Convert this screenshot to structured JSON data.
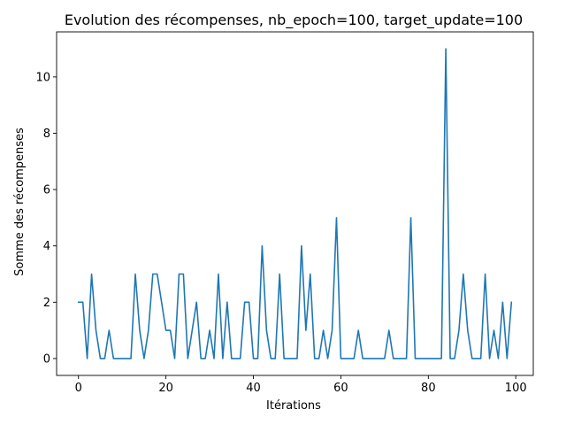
{
  "chart_data": {
    "type": "line",
    "title": "Evolution des récompenses, nb_epoch=100, target_update=100",
    "xlabel": "Itérations",
    "ylabel": "Somme des récompenses",
    "xlim": [
      -5,
      104
    ],
    "ylim": [
      -0.6,
      11.6
    ],
    "xticks": [
      0,
      20,
      40,
      60,
      80,
      100
    ],
    "yticks": [
      0,
      2,
      4,
      6,
      8,
      10
    ],
    "grid": false,
    "line_color": "#1f77b4",
    "series": [
      {
        "x": [
          0,
          1,
          2,
          3,
          4,
          5,
          6,
          7,
          8,
          9,
          10,
          11,
          12,
          13,
          14,
          15,
          16,
          17,
          18,
          19,
          20,
          21,
          22,
          23,
          24,
          25,
          26,
          27,
          28,
          29,
          30,
          31,
          32,
          33,
          34,
          35,
          36,
          37,
          38,
          39,
          40,
          41,
          42,
          43,
          44,
          45,
          46,
          47,
          48,
          49,
          50,
          51,
          52,
          53,
          54,
          55,
          56,
          57,
          58,
          59,
          60,
          61,
          62,
          63,
          64,
          65,
          66,
          67,
          68,
          69,
          70,
          71,
          72,
          73,
          74,
          75,
          76,
          77,
          78,
          79,
          80,
          81,
          82,
          83,
          84,
          85,
          86,
          87,
          88,
          89,
          90,
          91,
          92,
          93,
          94,
          95,
          96,
          97,
          98,
          99
        ],
        "values": [
          2,
          2,
          0,
          3,
          1,
          0,
          0,
          1,
          0,
          0,
          0,
          0,
          0,
          3,
          1,
          0,
          1,
          3,
          3,
          2,
          1,
          1,
          0,
          3,
          3,
          0,
          1,
          2,
          0,
          0,
          1,
          0,
          3,
          0,
          2,
          0,
          0,
          0,
          2,
          2,
          0,
          0,
          4,
          1,
          0,
          0,
          3,
          0,
          0,
          0,
          0,
          4,
          1,
          3,
          0,
          0,
          1,
          0,
          1,
          5,
          0,
          0,
          0,
          0,
          1,
          0,
          0,
          0,
          0,
          0,
          0,
          1,
          0,
          0,
          0,
          0,
          5,
          0,
          0,
          0,
          0,
          0,
          0,
          0,
          11,
          0,
          0,
          1,
          3,
          1,
          0,
          0,
          0,
          3,
          0,
          1,
          0,
          2,
          0,
          2
        ]
      }
    ]
  }
}
